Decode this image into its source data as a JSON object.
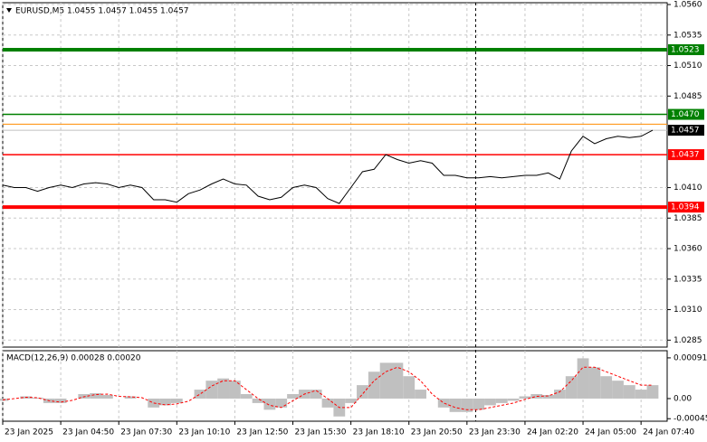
{
  "chart_data": [
    {
      "type": "line",
      "title": "EURUSD,M5  1.0455 1.0457 1.0455 1.0457",
      "color": "#000000",
      "x": [
        0,
        4,
        8,
        12,
        16,
        20,
        24,
        28,
        32,
        36,
        40,
        44,
        48,
        52,
        56,
        60,
        64,
        68,
        72,
        76,
        80,
        84,
        88,
        92,
        96,
        100,
        104,
        108,
        112,
        116,
        120,
        124,
        128,
        132,
        136,
        140,
        144,
        148,
        152,
        156,
        160,
        164,
        168,
        172,
        176,
        180,
        184,
        188,
        192,
        196,
        200,
        204,
        208,
        212,
        216,
        220,
        224
      ],
      "values": [
        1.0412,
        1.041,
        1.041,
        1.0407,
        1.041,
        1.0412,
        1.041,
        1.0413,
        1.0414,
        1.0413,
        1.041,
        1.0412,
        1.041,
        1.04,
        1.04,
        1.0398,
        1.0405,
        1.0408,
        1.0413,
        1.0417,
        1.0413,
        1.0412,
        1.0403,
        1.04,
        1.0402,
        1.041,
        1.0412,
        1.041,
        1.0401,
        1.0397,
        1.041,
        1.0423,
        1.0425,
        1.0437,
        1.0433,
        1.043,
        1.0432,
        1.043,
        1.042,
        1.042,
        1.0418,
        1.0418,
        1.0419,
        1.0418,
        1.0419,
        1.042,
        1.042,
        1.0422,
        1.0417,
        1.044,
        1.0452,
        1.0446,
        1.045,
        1.0452,
        1.0451,
        1.0452,
        1.0457
      ],
      "xlim": [
        0,
        229
      ],
      "xticks": [
        {
          "value": 0,
          "label": "23 Jan 2025"
        },
        {
          "value": 20,
          "label": "23 Jan 04:50"
        },
        {
          "value": 40,
          "label": "23 Jan 07:30"
        },
        {
          "value": 60,
          "label": "23 Jan 10:10"
        },
        {
          "value": 80,
          "label": "23 Jan 12:50"
        },
        {
          "value": 100,
          "label": "23 Jan 15:30"
        },
        {
          "value": 120,
          "label": "23 Jan 18:10"
        },
        {
          "value": 140,
          "label": "23 Jan 20:50"
        },
        {
          "value": 160,
          "label": "23 Jan 23:30"
        },
        {
          "value": 180,
          "label": "24 Jan 02:20"
        },
        {
          "value": 200,
          "label": "24 Jan 05:00"
        },
        {
          "value": 220,
          "label": "24 Jan 07:40"
        }
      ],
      "ylim": [
        1.02793,
        1.05615
      ],
      "yticks": [
        {
          "value": 1.056,
          "label": "1.0560"
        },
        1.0535,
        {
          "value": 1.051,
          "label": "1.0510"
        },
        1.0485,
        {
          "value": 1.041,
          "label": "1.0410"
        },
        1.0385,
        {
          "value": 1.036,
          "label": "1.0360"
        },
        1.0335,
        {
          "value": 1.031,
          "label": "1.0310"
        },
        1.0285
      ],
      "grid": true,
      "cursor_x": 163,
      "levels": [
        {
          "value": 1.0523,
          "color": "#008000"
        },
        {
          "value": 1.047,
          "label": "1.0470",
          "color": "#008000"
        },
        {
          "value": 1.0462,
          "color": "#ff8c00",
          "boxed": false
        },
        {
          "value": 1.0457,
          "color": "#c0c0c0",
          "box_color": "#000000"
        },
        {
          "value": 1.0437,
          "color": "#ff0000"
        },
        {
          "value": 1.0394,
          "color": "#ff0000"
        }
      ]
    },
    {
      "type": "bar",
      "title": "MACD(12,26,9) 0.00028 0.00020",
      "ylim": [
        -0.000506,
        0.00107
      ],
      "yticks": [
        0.00091,
        {
          "value": 0,
          "label": "0.00"
        },
        -0.00045
      ],
      "series": [
        {
          "type": "bar",
          "color": "#c0c0c0",
          "values": [
            -5e-05,
            0,
            5e-05,
            2e-05,
            -0.0001,
            -0.0001,
            0,
            0.0001,
            0.00012,
            8e-05,
            0,
            5e-05,
            0,
            -0.0002,
            -0.00015,
            -0.0001,
            0,
            0.0002,
            0.0004,
            0.00045,
            0.0004,
            0.0001,
            -0.0001,
            -0.00025,
            -0.0002,
            0.0001,
            0.0002,
            0.0002,
            -0.0002,
            -0.0004,
            -0.0001,
            0.0003,
            0.0006,
            0.0008,
            0.0008,
            0.0005,
            0.0002,
            0,
            -0.0002,
            -0.0003,
            -0.0003,
            -0.00025,
            -0.00015,
            -0.0001,
            -5e-05,
            5e-05,
            0.0001,
            8e-05,
            0.0002,
            0.0005,
            0.0009,
            0.0007,
            0.0005,
            0.0004,
            0.0003,
            0.0002,
            0.0003
          ]
        },
        {
          "type": "line",
          "color": "#ff0000",
          "values": [
            -3e-05,
            0,
            3e-05,
            2e-05,
            -5e-05,
            -8e-05,
            -4e-05,
            4e-05,
            9e-05,
            0.0001,
            5e-05,
            4e-05,
            2e-05,
            -0.0001,
            -0.00014,
            -0.00012,
            -6e-05,
            0.0001,
            0.00028,
            0.0004,
            0.0004,
            0.0002,
            0,
            -0.00015,
            -0.0002,
            -5e-05,
            0.0001,
            0.00018,
            0,
            -0.0002,
            -0.0002,
            0.0001,
            0.0004,
            0.0006,
            0.0007,
            0.0006,
            0.0004,
            0.0001,
            -0.0001,
            -0.0002,
            -0.00025,
            -0.00025,
            -0.0002,
            -0.00015,
            -0.0001,
            -2e-05,
            5e-05,
            6e-05,
            0.00015,
            0.0004,
            0.0007,
            0.0007,
            0.0006,
            0.0005,
            0.0004,
            0.0003,
            0.0003
          ]
        }
      ]
    }
  ]
}
